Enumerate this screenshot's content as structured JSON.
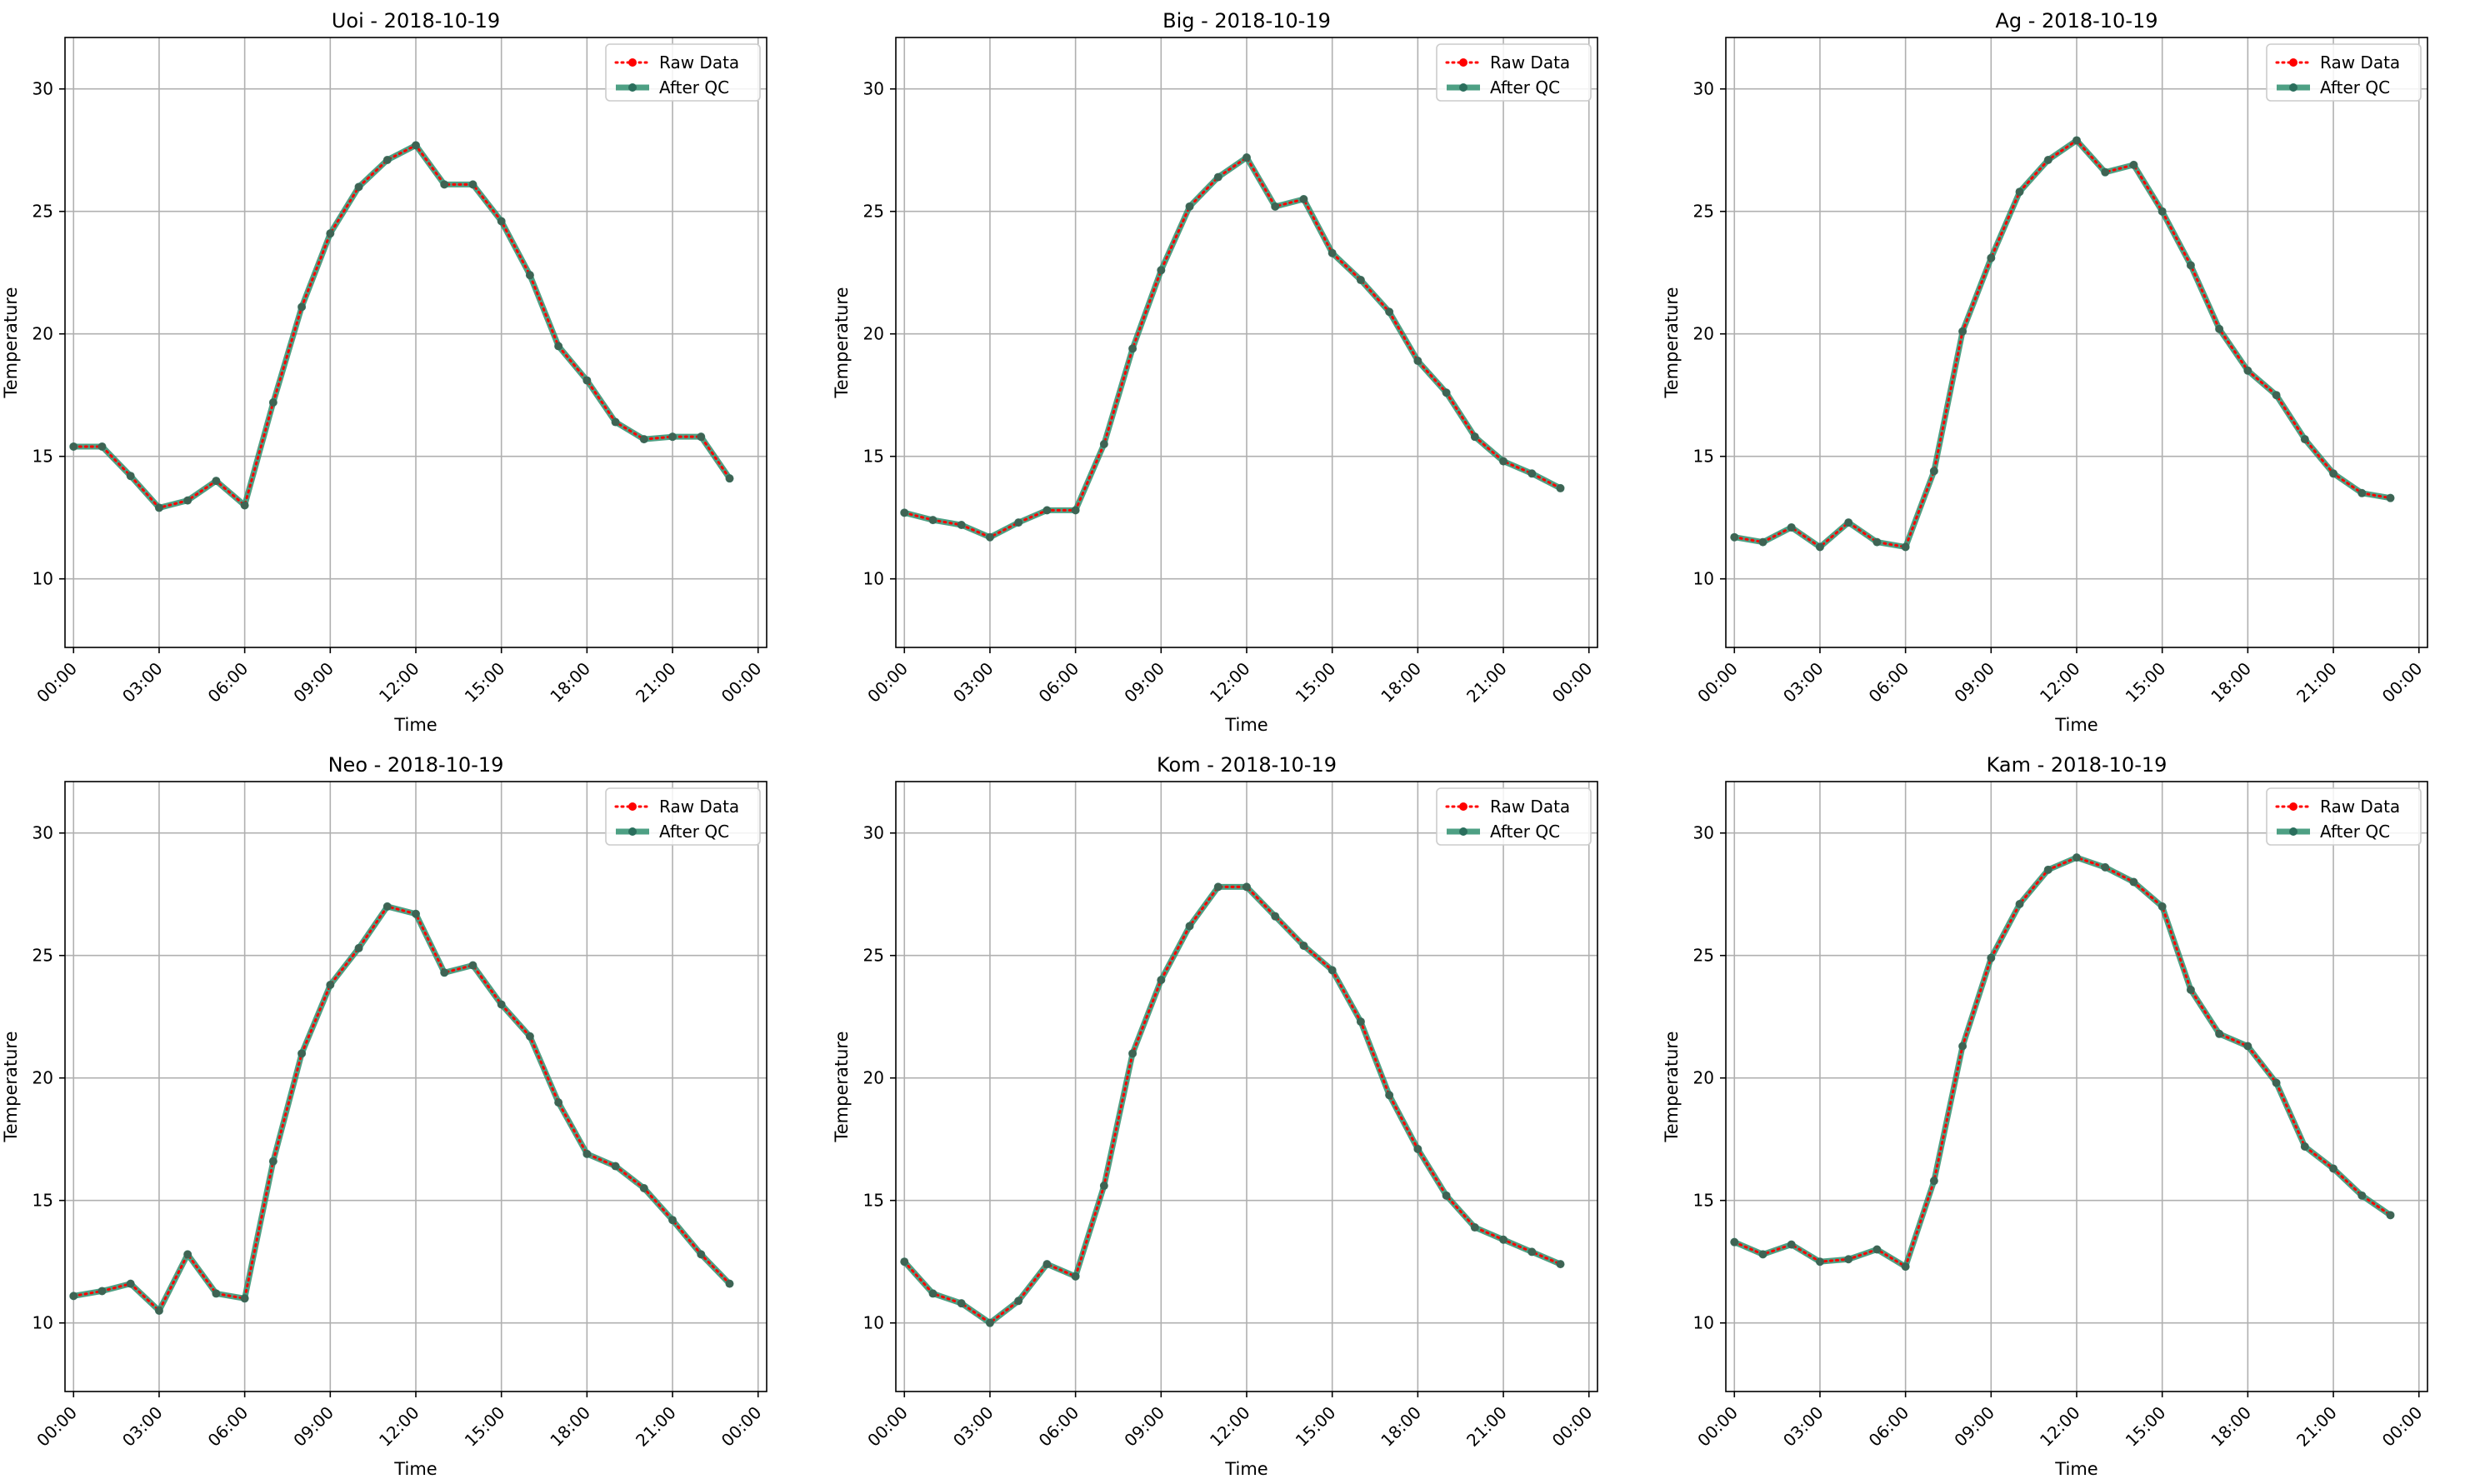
{
  "chart_data": [
    {
      "type": "line",
      "title": "Uoi - 2018-10-19",
      "xlabel": "Time",
      "ylabel": "Temperature",
      "xlim": [
        "2018-10-19 00:00",
        "2018-10-20 00:00"
      ],
      "ylim": [
        7.2,
        32.1
      ],
      "xticks": [
        "00:00",
        "03:00",
        "06:00",
        "09:00",
        "12:00",
        "15:00",
        "18:00",
        "21:00",
        "00:00"
      ],
      "yticks": [
        10,
        15,
        20,
        25,
        30
      ],
      "grid": true,
      "legend": "top-right",
      "x": [
        "00:00",
        "01:00",
        "02:00",
        "03:00",
        "04:00",
        "05:00",
        "06:00",
        "07:00",
        "08:00",
        "09:00",
        "10:00",
        "11:00",
        "12:00",
        "13:00",
        "14:00",
        "15:00",
        "16:00",
        "17:00",
        "18:00",
        "19:00",
        "20:00",
        "21:00",
        "22:00",
        "23:00"
      ],
      "series": [
        {
          "name": "Raw Data",
          "color": "#ff0000",
          "values": [
            15.4,
            15.4,
            14.2,
            12.9,
            13.2,
            14.0,
            13.0,
            17.2,
            21.1,
            24.1,
            26.0,
            27.1,
            27.7,
            26.1,
            26.1,
            24.6,
            22.4,
            19.5,
            18.1,
            16.4,
            15.7,
            15.8,
            15.8,
            14.1
          ]
        },
        {
          "name": "After QC",
          "color": "#2f8f6f",
          "values": [
            15.4,
            15.4,
            14.2,
            12.9,
            13.2,
            14.0,
            13.0,
            17.2,
            21.1,
            24.1,
            26.0,
            27.1,
            27.7,
            26.1,
            26.1,
            24.6,
            22.4,
            19.5,
            18.1,
            16.4,
            15.7,
            15.8,
            15.8,
            14.1
          ]
        }
      ]
    },
    {
      "type": "line",
      "title": "Big - 2018-10-19",
      "xlabel": "Time",
      "ylabel": "Temperature",
      "xlim": [
        "2018-10-19 00:00",
        "2018-10-20 00:00"
      ],
      "ylim": [
        7.2,
        32.1
      ],
      "xticks": [
        "00:00",
        "03:00",
        "06:00",
        "09:00",
        "12:00",
        "15:00",
        "18:00",
        "21:00",
        "00:00"
      ],
      "yticks": [
        10,
        15,
        20,
        25,
        30
      ],
      "grid": true,
      "legend": "top-right",
      "x": [
        "00:00",
        "01:00",
        "02:00",
        "03:00",
        "04:00",
        "05:00",
        "06:00",
        "07:00",
        "08:00",
        "09:00",
        "10:00",
        "11:00",
        "12:00",
        "13:00",
        "14:00",
        "15:00",
        "16:00",
        "17:00",
        "18:00",
        "19:00",
        "20:00",
        "21:00",
        "22:00",
        "23:00"
      ],
      "series": [
        {
          "name": "Raw Data",
          "color": "#ff0000",
          "values": [
            12.7,
            12.4,
            12.2,
            11.7,
            12.3,
            12.8,
            12.8,
            15.5,
            19.4,
            22.6,
            25.2,
            26.4,
            27.2,
            25.2,
            25.5,
            23.3,
            22.2,
            20.9,
            18.9,
            17.6,
            15.8,
            14.8,
            14.3,
            13.7
          ]
        },
        {
          "name": "After QC",
          "color": "#2f8f6f",
          "values": [
            12.7,
            12.4,
            12.2,
            11.7,
            12.3,
            12.8,
            12.8,
            15.5,
            19.4,
            22.6,
            25.2,
            26.4,
            27.2,
            25.2,
            25.5,
            23.3,
            22.2,
            20.9,
            18.9,
            17.6,
            15.8,
            14.8,
            14.3,
            13.7
          ]
        }
      ]
    },
    {
      "type": "line",
      "title": "Ag - 2018-10-19",
      "xlabel": "Time",
      "ylabel": "Temperature",
      "xlim": [
        "2018-10-19 00:00",
        "2018-10-20 00:00"
      ],
      "ylim": [
        7.2,
        32.1
      ],
      "xticks": [
        "00:00",
        "03:00",
        "06:00",
        "09:00",
        "12:00",
        "15:00",
        "18:00",
        "21:00",
        "00:00"
      ],
      "yticks": [
        10,
        15,
        20,
        25,
        30
      ],
      "grid": true,
      "legend": "top-right",
      "x": [
        "00:00",
        "01:00",
        "02:00",
        "03:00",
        "04:00",
        "05:00",
        "06:00",
        "07:00",
        "08:00",
        "09:00",
        "10:00",
        "11:00",
        "12:00",
        "13:00",
        "14:00",
        "15:00",
        "16:00",
        "17:00",
        "18:00",
        "19:00",
        "20:00",
        "21:00",
        "22:00",
        "23:00"
      ],
      "series": [
        {
          "name": "Raw Data",
          "color": "#ff0000",
          "values": [
            11.7,
            11.5,
            12.1,
            11.3,
            12.3,
            11.5,
            11.3,
            14.4,
            20.1,
            23.1,
            25.8,
            27.1,
            27.9,
            26.6,
            26.9,
            25.0,
            22.8,
            20.2,
            18.5,
            17.5,
            15.7,
            14.3,
            13.5,
            13.3
          ]
        },
        {
          "name": "After QC",
          "color": "#2f8f6f",
          "values": [
            11.7,
            11.5,
            12.1,
            11.3,
            12.3,
            11.5,
            11.3,
            14.4,
            20.1,
            23.1,
            25.8,
            27.1,
            27.9,
            26.6,
            26.9,
            25.0,
            22.8,
            20.2,
            18.5,
            17.5,
            15.7,
            14.3,
            13.5,
            13.3
          ]
        }
      ]
    },
    {
      "type": "line",
      "title": "Neo - 2018-10-19",
      "xlabel": "Time",
      "ylabel": "Temperature",
      "xlim": [
        "2018-10-19 00:00",
        "2018-10-20 00:00"
      ],
      "ylim": [
        7.2,
        32.1
      ],
      "xticks": [
        "00:00",
        "03:00",
        "06:00",
        "09:00",
        "12:00",
        "15:00",
        "18:00",
        "21:00",
        "00:00"
      ],
      "yticks": [
        10,
        15,
        20,
        25,
        30
      ],
      "grid": true,
      "legend": "top-right",
      "x": [
        "00:00",
        "01:00",
        "02:00",
        "03:00",
        "04:00",
        "05:00",
        "06:00",
        "07:00",
        "08:00",
        "09:00",
        "10:00",
        "11:00",
        "12:00",
        "13:00",
        "14:00",
        "15:00",
        "16:00",
        "17:00",
        "18:00",
        "19:00",
        "20:00",
        "21:00",
        "22:00",
        "23:00"
      ],
      "series": [
        {
          "name": "Raw Data",
          "color": "#ff0000",
          "values": [
            11.1,
            11.3,
            11.6,
            10.5,
            12.8,
            11.2,
            11.0,
            16.6,
            21.0,
            23.8,
            25.3,
            27.0,
            26.7,
            24.3,
            24.6,
            23.0,
            21.7,
            19.0,
            16.9,
            16.4,
            15.5,
            14.2,
            12.8,
            11.6
          ]
        },
        {
          "name": "After QC",
          "color": "#2f8f6f",
          "values": [
            11.1,
            11.3,
            11.6,
            10.5,
            12.8,
            11.2,
            11.0,
            16.6,
            21.0,
            23.8,
            25.3,
            27.0,
            26.7,
            24.3,
            24.6,
            23.0,
            21.7,
            19.0,
            16.9,
            16.4,
            15.5,
            14.2,
            12.8,
            11.6
          ]
        }
      ]
    },
    {
      "type": "line",
      "title": "Kom - 2018-10-19",
      "xlabel": "Time",
      "ylabel": "Temperature",
      "xlim": [
        "2018-10-19 00:00",
        "2018-10-20 00:00"
      ],
      "ylim": [
        7.2,
        32.1
      ],
      "xticks": [
        "00:00",
        "03:00",
        "06:00",
        "09:00",
        "12:00",
        "15:00",
        "18:00",
        "21:00",
        "00:00"
      ],
      "yticks": [
        10,
        15,
        20,
        25,
        30
      ],
      "grid": true,
      "legend": "top-right",
      "x": [
        "00:00",
        "01:00",
        "02:00",
        "03:00",
        "04:00",
        "05:00",
        "06:00",
        "07:00",
        "08:00",
        "09:00",
        "10:00",
        "11:00",
        "12:00",
        "13:00",
        "14:00",
        "15:00",
        "16:00",
        "17:00",
        "18:00",
        "19:00",
        "20:00",
        "21:00",
        "22:00",
        "23:00"
      ],
      "series": [
        {
          "name": "Raw Data",
          "color": "#ff0000",
          "values": [
            12.5,
            11.2,
            10.8,
            10.0,
            10.9,
            12.4,
            11.9,
            15.6,
            21.0,
            24.0,
            26.2,
            27.8,
            27.8,
            26.6,
            25.4,
            24.4,
            22.3,
            19.3,
            17.1,
            15.2,
            13.9,
            13.4,
            12.9,
            12.4
          ]
        },
        {
          "name": "After QC",
          "color": "#2f8f6f",
          "values": [
            12.5,
            11.2,
            10.8,
            10.0,
            10.9,
            12.4,
            11.9,
            15.6,
            21.0,
            24.0,
            26.2,
            27.8,
            27.8,
            26.6,
            25.4,
            24.4,
            22.3,
            19.3,
            17.1,
            15.2,
            13.9,
            13.4,
            12.9,
            12.4
          ]
        }
      ]
    },
    {
      "type": "line",
      "title": "Kam - 2018-10-19",
      "xlabel": "Time",
      "ylabel": "Temperature",
      "xlim": [
        "2018-10-19 00:00",
        "2018-10-20 00:00"
      ],
      "ylim": [
        7.2,
        32.1
      ],
      "xticks": [
        "00:00",
        "03:00",
        "06:00",
        "09:00",
        "12:00",
        "15:00",
        "18:00",
        "21:00",
        "00:00"
      ],
      "yticks": [
        10,
        15,
        20,
        25,
        30
      ],
      "grid": true,
      "legend": "top-right",
      "x": [
        "00:00",
        "01:00",
        "02:00",
        "03:00",
        "04:00",
        "05:00",
        "06:00",
        "07:00",
        "08:00",
        "09:00",
        "10:00",
        "11:00",
        "12:00",
        "13:00",
        "14:00",
        "15:00",
        "16:00",
        "17:00",
        "18:00",
        "19:00",
        "20:00",
        "21:00",
        "22:00",
        "23:00"
      ],
      "series": [
        {
          "name": "Raw Data",
          "color": "#ff0000",
          "values": [
            13.3,
            12.8,
            13.2,
            12.5,
            12.6,
            13.0,
            12.3,
            15.8,
            21.3,
            24.9,
            27.1,
            28.5,
            29.0,
            28.6,
            28.0,
            27.0,
            23.6,
            21.8,
            21.3,
            19.8,
            17.2,
            16.3,
            15.2,
            14.4
          ]
        },
        {
          "name": "After QC",
          "color": "#2f8f6f",
          "values": [
            13.3,
            12.8,
            13.2,
            12.5,
            12.6,
            13.0,
            12.3,
            15.8,
            21.3,
            24.9,
            27.1,
            28.5,
            29.0,
            28.6,
            28.0,
            27.0,
            23.6,
            21.8,
            21.3,
            19.8,
            17.2,
            16.3,
            15.2,
            14.4
          ]
        }
      ]
    }
  ]
}
